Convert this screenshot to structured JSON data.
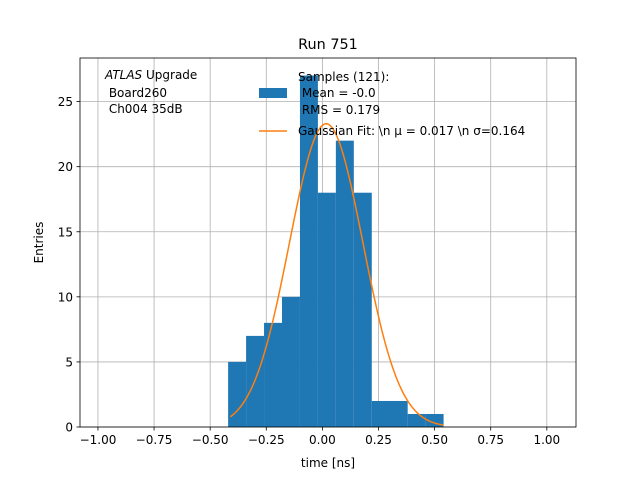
{
  "chart_data": {
    "type": "bar",
    "title": "Run 751",
    "xlabel": "time [ns]",
    "ylabel": "Entries",
    "xlim": [
      -1.08,
      1.13
    ],
    "ylim": [
      0,
      28.35
    ],
    "grid": true,
    "xticks": [
      -1.0,
      -0.75,
      -0.5,
      -0.25,
      0.0,
      0.25,
      0.5,
      0.75,
      1.0
    ],
    "xtick_labels": [
      "−1.00",
      "−0.75",
      "−0.50",
      "−0.25",
      "0.00",
      "0.25",
      "0.50",
      "0.75",
      "1.00"
    ],
    "yticks": [
      0,
      5,
      10,
      15,
      20,
      25
    ],
    "ytick_labels": [
      "0",
      "5",
      "10",
      "15",
      "20",
      "25"
    ],
    "histogram": {
      "bin_edges": [
        -0.42,
        -0.34,
        -0.26,
        -0.18,
        -0.1,
        -0.02,
        0.06,
        0.14,
        0.22,
        0.38,
        0.46,
        0.54
      ],
      "counts": [
        5,
        7,
        8,
        10,
        27,
        18,
        22,
        18,
        2,
        1,
        1
      ],
      "color": "#1f77b4"
    },
    "fit": {
      "type": "gaussian",
      "mu": 0.017,
      "sigma": 0.164,
      "amplitude": 23.3,
      "x_range": [
        -0.41,
        0.54
      ],
      "color": "#ff7f0e"
    },
    "legend": {
      "placement": "top-right",
      "entries": [
        {
          "label_lines": [
            "Samples (121):",
            " Mean = -0.0",
            " RMS = 0.179"
          ],
          "marker": "patch",
          "color": "#1f77b4"
        },
        {
          "label_lines": [
            "Gaussian Fit: \\n μ = 0.017 \\n σ=0.164"
          ],
          "marker": "line",
          "color": "#ff7f0e"
        }
      ]
    },
    "annotation": {
      "italic_prefix": "ATLAS",
      "line1_rest": " Upgrade",
      "line2": " Board260",
      "line3": " Ch004 35dB"
    }
  }
}
